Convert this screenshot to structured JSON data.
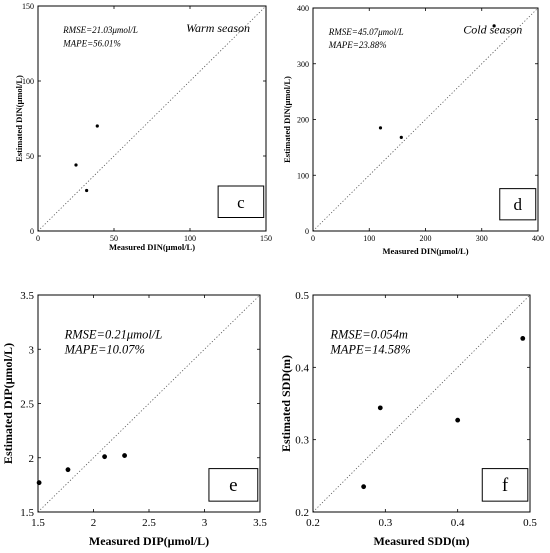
{
  "chart_data": [
    {
      "type": "scatter",
      "title": "Warm season",
      "panel_label": "c",
      "xlabel": "Measured DIN(μmol/L)",
      "ylabel": "Estimated DIN(μmol/L)",
      "xlim": [
        0,
        150
      ],
      "ylim": [
        0,
        150
      ],
      "x_ticks": [
        "0",
        "50",
        "100",
        "150"
      ],
      "y_ticks": [
        "0",
        "50",
        "100",
        "150"
      ],
      "annotations": [
        "RMSE=21.03μmol/L",
        "MAPE=56.01%"
      ],
      "reference_line": "1:1 dotted",
      "points": [
        {
          "x": 25,
          "y": 44
        },
        {
          "x": 32,
          "y": 27
        },
        {
          "x": 39,
          "y": 70
        }
      ]
    },
    {
      "type": "scatter",
      "title": "Cold season",
      "panel_label": "d",
      "xlabel": "Measured DIN(μmol/L)",
      "ylabel": "Estimated DIN(μmol/L)",
      "xlim": [
        0,
        400
      ],
      "ylim": [
        0,
        400
      ],
      "x_ticks": [
        "0",
        "100",
        "200",
        "300",
        "400"
      ],
      "y_ticks": [
        "0",
        "100",
        "200",
        "300",
        "400"
      ],
      "annotations": [
        "RMSE=45.07μmol/L",
        "MAPE=23.88%"
      ],
      "reference_line": "1:1 dotted",
      "points": [
        {
          "x": 120,
          "y": 185
        },
        {
          "x": 157,
          "y": 168
        },
        {
          "x": 322,
          "y": 368
        }
      ]
    },
    {
      "type": "scatter",
      "panel_label": "e",
      "xlabel": "Measured DIP(μmol/L)",
      "ylabel": "Estimated DIP(μmol/L)",
      "xlim": [
        1.5,
        3.5
      ],
      "ylim": [
        1.5,
        3.5
      ],
      "x_ticks": [
        "1.5",
        "2",
        "2.5",
        "3",
        "3.5"
      ],
      "y_ticks": [
        "1.5",
        "2",
        "2.5",
        "3",
        "3.5"
      ],
      "annotations": [
        "RMSE=0.21μmol/L",
        "MAPE=10.07%"
      ],
      "reference_line": "1:1 dotted",
      "points": [
        {
          "x": 1.51,
          "y": 1.77
        },
        {
          "x": 1.77,
          "y": 1.89
        },
        {
          "x": 2.1,
          "y": 2.01
        },
        {
          "x": 2.28,
          "y": 2.02
        }
      ]
    },
    {
      "type": "scatter",
      "panel_label": "f",
      "xlabel": "Measured SDD(m)",
      "ylabel": "Estimated SDD(m)",
      "xlim": [
        0.2,
        0.5
      ],
      "ylim": [
        0.2,
        0.5
      ],
      "x_ticks": [
        "0.2",
        "0.3",
        "0.4",
        "0.5"
      ],
      "y_ticks": [
        "0.2",
        "0.3",
        "0.4",
        "0.5"
      ],
      "annotations": [
        "RMSE=0.054m",
        "MAPE=14.58%"
      ],
      "reference_line": "1:1 dotted",
      "points": [
        {
          "x": 0.27,
          "y": 0.235
        },
        {
          "x": 0.293,
          "y": 0.344
        },
        {
          "x": 0.4,
          "y": 0.327
        },
        {
          "x": 0.49,
          "y": 0.44
        }
      ]
    }
  ]
}
